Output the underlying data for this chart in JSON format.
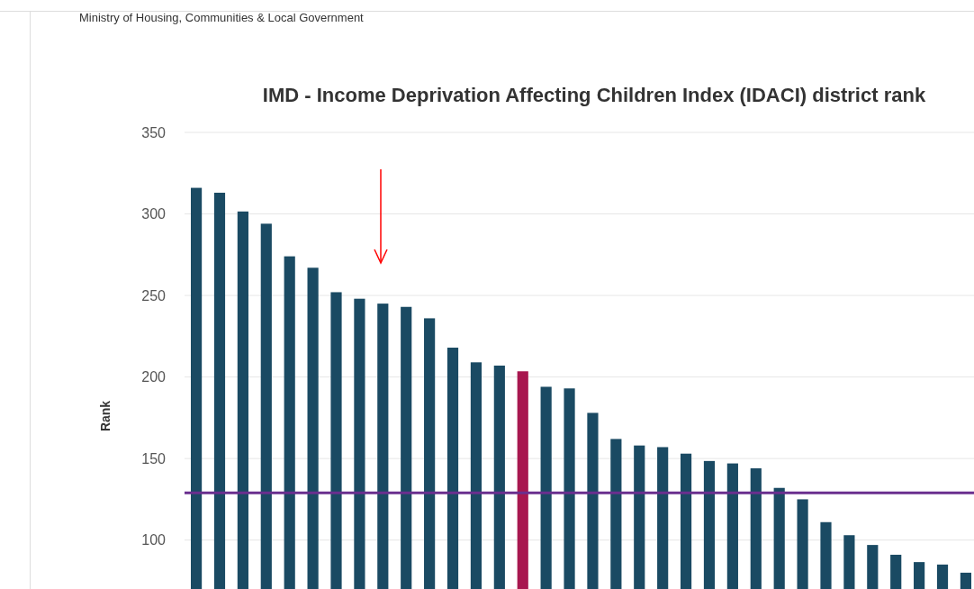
{
  "chart_data": {
    "type": "bar",
    "title": "IMD - Income Deprivation Affecting Children Index (IDACI) district rank",
    "ylabel": "Rank",
    "annotations": [
      "Ministry of Housing, Communities & Local Government"
    ],
    "categories": [
      null,
      null,
      null,
      null,
      null,
      null,
      null,
      null,
      null,
      null,
      null,
      null,
      null,
      null,
      null,
      null,
      null,
      null,
      null,
      null,
      null,
      null,
      null,
      null,
      null,
      null,
      null,
      null,
      null,
      null,
      null,
      null,
      null,
      null
    ],
    "values": [
      316,
      313,
      301.5,
      294,
      274,
      267,
      252,
      248,
      245,
      243,
      236,
      218,
      209,
      207,
      203.5,
      194,
      193,
      178,
      162,
      158,
      157,
      153,
      148.5,
      147,
      144,
      132,
      125,
      111,
      103,
      97,
      91,
      86.5,
      85,
      80
    ],
    "colors": [
      "#1a4a63",
      "#1a4a63",
      "#1a4a63",
      "#1a4a63",
      "#1a4a63",
      "#1a4a63",
      "#1a4a63",
      "#1a4a63",
      "#1a4a63",
      "#1a4a63",
      "#1a4a63",
      "#1a4a63",
      "#1a4a63",
      "#1a4a63",
      "#a8174f",
      "#1a4a63",
      "#1a4a63",
      "#1a4a63",
      "#1a4a63",
      "#1a4a63",
      "#1a4a63",
      "#1a4a63",
      "#1a4a63",
      "#1a4a63",
      "#1a4a63",
      "#1a4a63",
      "#1a4a63",
      "#1a4a63",
      "#1a4a63",
      "#1a4a63",
      "#1a4a63",
      "#1a4a63",
      "#1a4a63",
      "#1a4a63"
    ],
    "ylim": [
      70,
      350
    ],
    "yticks": [
      100,
      150,
      200,
      250,
      300,
      350
    ],
    "grid": "y",
    "tick_labels": "y",
    "ref_lines": [
      {
        "axis": "y",
        "value": 129,
        "color": "#6a2f8e"
      }
    ]
  }
}
